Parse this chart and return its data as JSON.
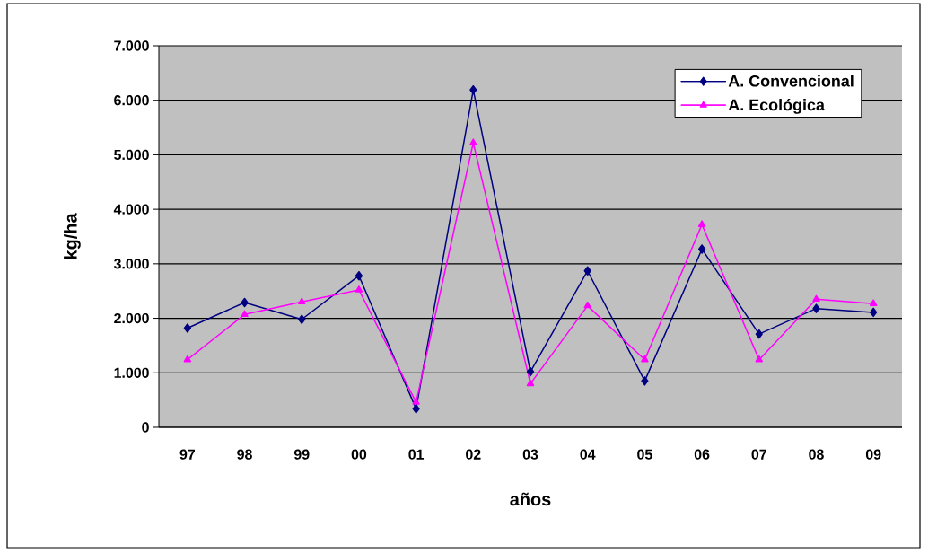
{
  "chart_data": {
    "type": "line",
    "xlabel": "años",
    "ylabel": "kg/ha",
    "categories": [
      "97",
      "98",
      "99",
      "00",
      "01",
      "02",
      "03",
      "04",
      "05",
      "06",
      "07",
      "08",
      "09"
    ],
    "series": [
      {
        "name": "A. Convencional",
        "color": "#000080",
        "marker": "diamond",
        "values": [
          1820,
          2290,
          1980,
          2780,
          340,
          6190,
          1020,
          2870,
          850,
          3270,
          1710,
          2180,
          2110
        ]
      },
      {
        "name": "A. Ecológica",
        "color": "#ff00ff",
        "marker": "triangle",
        "values": [
          1240,
          2070,
          2300,
          2520,
          460,
          5220,
          800,
          2230,
          1240,
          3720,
          1240,
          2350,
          2270
        ]
      }
    ],
    "ylim": [
      0,
      7000
    ],
    "yticks": [
      0,
      {
        "value": 1000,
        "label": "1.000"
      },
      {
        "value": 2000,
        "label": "2.000"
      },
      {
        "value": 3000,
        "label": "3.000"
      },
      {
        "value": 4000,
        "label": "4.000"
      },
      {
        "value": 5000,
        "label": "5.000"
      },
      {
        "value": 6000,
        "label": "6.000"
      },
      {
        "value": 7000,
        "label": "7.000"
      }
    ],
    "grid": "y",
    "legend": "top right",
    "line_style": "solid"
  }
}
